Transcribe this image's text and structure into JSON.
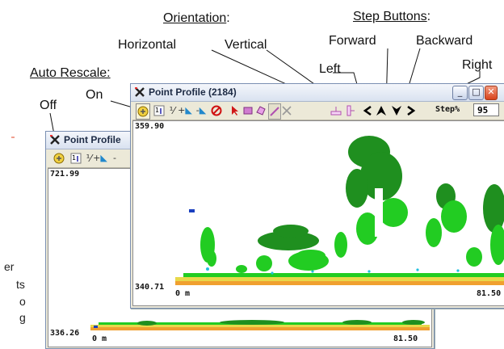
{
  "annotations": {
    "auto_rescale": "Auto Rescale:",
    "off": "Off",
    "on": "On",
    "orientation": "Orientation",
    "orientation_colon": ":",
    "horizontal": "Horizontal",
    "vertical": "Vertical",
    "step_buttons": "Step Buttons",
    "step_colon": ":",
    "forward": "Forward",
    "backward": "Backward",
    "left": "Left",
    "right": "Right"
  },
  "fragments": [
    "er",
    "ts",
    "o",
    "g"
  ],
  "back_window": {
    "title": "Point Profile",
    "y_top": "721.99",
    "y_bottom": "336.26",
    "x_start": "0 m",
    "x_end": "81.50"
  },
  "front_window": {
    "title": "Point Profile (2184)",
    "y_top": "359.90",
    "y_bottom": "340.71",
    "x_start": "0 m",
    "x_end": "81.50",
    "step_label": "Step%",
    "step_value": "95"
  },
  "colors": {
    "vegetation_dark": "#1f8f1f",
    "vegetation_bright": "#22cc22",
    "ground_orange": "#f0a030",
    "ground_yellow": "#e8d84a",
    "water_blue": "#1a3fbf",
    "cyan_points": "#20c0e0"
  },
  "icons": [
    "auto-rescale-icon",
    "sort-icon",
    "percent-icon",
    "add-point-icon",
    "remove-point-icon",
    "no-icon",
    "select-arrow-icon",
    "rect-select-icon",
    "polygon-select-icon",
    "line-select-icon",
    "clear-icon",
    "horizontal-orientation-icon",
    "vertical-orientation-icon",
    "step-left-icon",
    "step-forward-icon",
    "step-backward-icon",
    "step-right-icon"
  ]
}
